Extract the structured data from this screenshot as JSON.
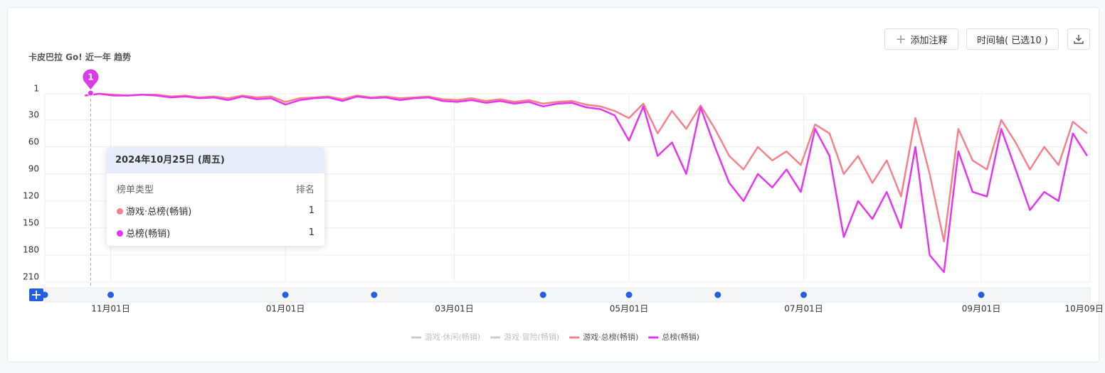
{
  "header": {
    "title": "卡皮巴拉 Go! 近一年 趋势",
    "buttons": [
      "添加注释",
      "时间轴( 已选10 )"
    ]
  },
  "chart_data": {
    "type": "line",
    "inverted": true,
    "grid": true,
    "x": [
      "2024-10-23",
      "2024-10-28",
      "2024-11-02",
      "2024-11-07",
      "2024-11-12",
      "2024-11-17",
      "2024-11-22",
      "2024-11-27",
      "2024-12-02",
      "2024-12-07",
      "2024-12-12",
      "2024-12-17",
      "2024-12-22",
      "2024-12-27",
      "2025-01-01",
      "2025-01-06",
      "2025-01-11",
      "2025-01-16",
      "2025-01-21",
      "2025-01-26",
      "2025-01-31",
      "2025-02-05",
      "2025-02-10",
      "2025-02-15",
      "2025-02-20",
      "2025-02-25",
      "2025-03-02",
      "2025-03-07",
      "2025-03-12",
      "2025-03-17",
      "2025-03-22",
      "2025-03-27",
      "2025-04-01",
      "2025-04-06",
      "2025-04-11",
      "2025-04-16",
      "2025-04-21",
      "2025-04-26",
      "2025-05-01",
      "2025-05-06",
      "2025-05-11",
      "2025-05-16",
      "2025-05-21",
      "2025-05-26",
      "2025-05-31",
      "2025-06-05",
      "2025-06-10",
      "2025-06-15",
      "2025-06-20",
      "2025-06-25",
      "2025-06-30",
      "2025-07-05",
      "2025-07-10",
      "2025-07-15",
      "2025-07-20",
      "2025-07-25",
      "2025-07-30",
      "2025-08-04",
      "2025-08-09",
      "2025-08-14",
      "2025-08-19",
      "2025-08-24",
      "2025-08-29",
      "2025-09-03",
      "2025-09-08",
      "2025-09-13",
      "2025-09-18",
      "2025-09-23",
      "2025-09-28",
      "2025-10-03",
      "2025-10-08"
    ],
    "series": [
      {
        "name": "游戏·总榜(畅销)",
        "color": "#f7818a",
        "values": [
          3,
          1,
          2,
          3,
          2,
          2,
          4,
          3,
          5,
          4,
          6,
          3,
          5,
          4,
          10,
          6,
          5,
          4,
          7,
          3,
          5,
          4,
          6,
          5,
          4,
          7,
          8,
          6,
          9,
          7,
          10,
          8,
          12,
          10,
          9,
          13,
          15,
          20,
          28,
          12,
          45,
          20,
          40,
          14,
          40,
          70,
          85,
          60,
          75,
          65,
          80,
          35,
          45,
          90,
          70,
          100,
          75,
          115,
          28,
          90,
          165,
          40,
          75,
          85,
          30,
          55,
          85,
          60,
          80,
          32,
          45
        ]
      },
      {
        "name": "总榜(畅销)",
        "color": "#e535f0",
        "values": [
          3,
          1,
          3,
          3,
          2,
          3,
          5,
          4,
          6,
          5,
          8,
          4,
          7,
          6,
          13,
          8,
          6,
          5,
          9,
          4,
          6,
          5,
          8,
          6,
          5,
          9,
          10,
          8,
          11,
          9,
          12,
          10,
          15,
          12,
          11,
          16,
          18,
          25,
          53,
          15,
          70,
          55,
          90,
          16,
          60,
          100,
          120,
          90,
          105,
          85,
          110,
          40,
          70,
          160,
          120,
          140,
          110,
          150,
          60,
          180,
          199,
          65,
          110,
          115,
          40,
          85,
          130,
          110,
          120,
          45,
          70
        ]
      }
    ],
    "inactive_series": [
      {
        "name": "游戏·休闲(畅销)",
        "color": "#cccccc"
      },
      {
        "name": "游戏·冒险(畅销)",
        "color": "#cccccc"
      }
    ],
    "xlim": [
      "2024-10-09",
      "2025-10-09"
    ],
    "xticks": [
      {
        "value": "2024-11-01",
        "label": "11月01日"
      },
      {
        "value": "2025-01-01",
        "label": "01月01日"
      },
      {
        "value": "2025-03-01",
        "label": "03月01日"
      },
      {
        "value": "2025-05-01",
        "label": "05月01日"
      },
      {
        "value": "2025-07-01",
        "label": "07月01日"
      },
      {
        "value": "2025-09-01",
        "label": "09月01日"
      },
      {
        "value": "2025-10-09",
        "label": "10月09日"
      }
    ],
    "ylim": [
      1,
      210
    ],
    "yticks": [
      1,
      30,
      60,
      90,
      120,
      150,
      180,
      210
    ],
    "marker": {
      "x": "2024-10-25",
      "label": 1
    },
    "timeline_events": [
      "2024-10-09",
      "2024-11-01",
      "2025-01-01",
      "2025-02-01",
      "2025-04-01",
      "2025-05-01",
      "2025-06-01",
      "2025-07-01",
      "2025-09-01"
    ]
  },
  "tooltip": {
    "date": "2024年10月25日 (周五)",
    "columns": [
      "榜单类型",
      "排名"
    ],
    "values": [
      1,
      1
    ]
  }
}
